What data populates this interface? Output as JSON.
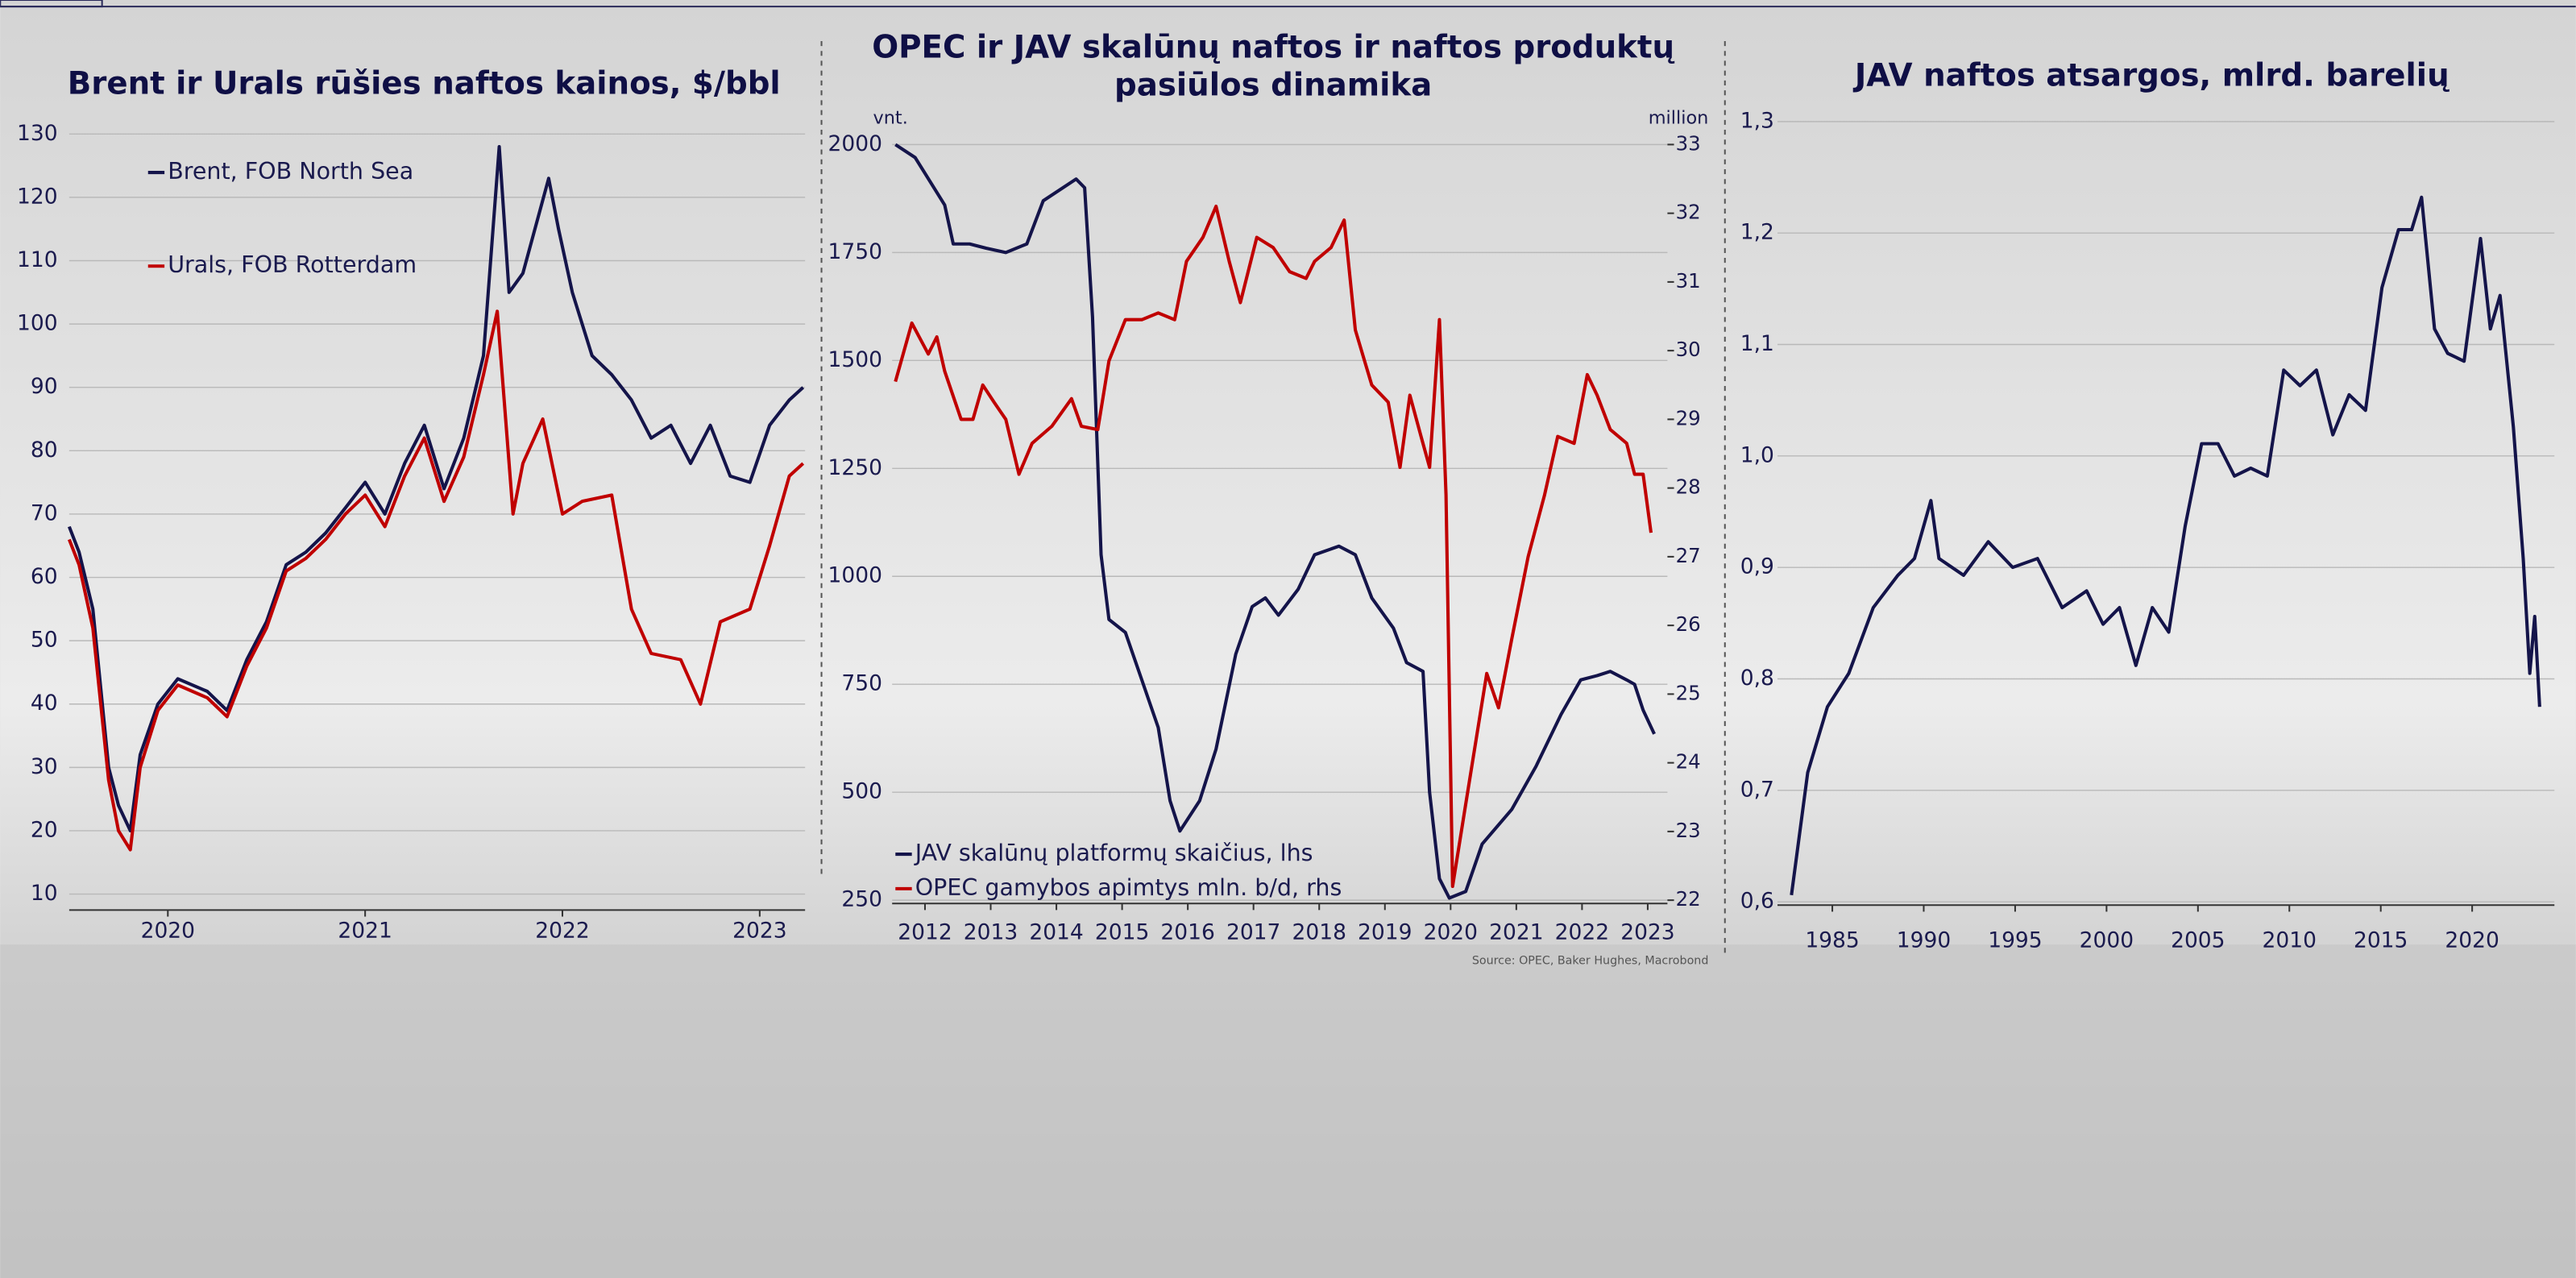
{
  "chart_data": [
    {
      "type": "line",
      "title": "Brent ir Urals rūšies naftos kainos, $/bbl",
      "xlim": [
        2020,
        2023.73
      ],
      "xticks": [
        {
          "value": 2020.5,
          "label": "2020"
        },
        {
          "value": 2021.5,
          "label": "2021"
        },
        {
          "value": 2022.5,
          "label": "2022"
        },
        {
          "value": 2023.5,
          "label": "2023"
        }
      ],
      "ylim": [
        8,
        133
      ],
      "yticks": [
        10,
        20,
        30,
        40,
        50,
        60,
        70,
        80,
        90,
        100,
        110,
        120,
        130
      ],
      "grid": true,
      "series": [
        {
          "name": "Brent, FOB North Sea",
          "color": "#14144a",
          "x": [
            2020.0,
            2020.05,
            2020.12,
            2020.2,
            2020.25,
            2020.31,
            2020.36,
            2020.45,
            2020.55,
            2020.7,
            2020.8,
            2020.9,
            2021.0,
            2021.1,
            2021.2,
            2021.3,
            2021.4,
            2021.5,
            2021.6,
            2021.7,
            2021.8,
            2021.9,
            2022.0,
            2022.1,
            2022.18,
            2022.23,
            2022.3,
            2022.43,
            2022.48,
            2022.55,
            2022.65,
            2022.75,
            2022.85,
            2022.95,
            2023.05,
            2023.15,
            2023.25,
            2023.35,
            2023.45,
            2023.55,
            2023.65,
            2023.72
          ],
          "values": [
            68,
            64,
            55,
            30,
            24,
            20,
            32,
            40,
            44,
            42,
            39,
            47,
            53,
            62,
            64,
            67,
            71,
            75,
            70,
            78,
            84,
            74,
            82,
            95,
            128,
            105,
            108,
            123,
            115,
            105,
            95,
            92,
            88,
            82,
            84,
            78,
            84,
            76,
            75,
            84,
            88,
            90
          ]
        },
        {
          "name": "Urals, FOB Rotterdam",
          "color": "#c00000",
          "x": [
            2020.0,
            2020.05,
            2020.12,
            2020.2,
            2020.25,
            2020.31,
            2020.36,
            2020.45,
            2020.55,
            2020.7,
            2020.8,
            2020.9,
            2021.0,
            2021.1,
            2021.2,
            2021.3,
            2021.4,
            2021.5,
            2021.6,
            2021.7,
            2021.8,
            2021.9,
            2022.0,
            2022.1,
            2022.17,
            2022.25,
            2022.3,
            2022.4,
            2022.5,
            2022.6,
            2022.75,
            2022.85,
            2022.95,
            2023.1,
            2023.2,
            2023.3,
            2023.45,
            2023.55,
            2023.65,
            2023.72
          ],
          "values": [
            66,
            62,
            52,
            28,
            20,
            17,
            30,
            39,
            43,
            41,
            38,
            46,
            52,
            61,
            63,
            66,
            70,
            73,
            68,
            76,
            82,
            72,
            79,
            92,
            102,
            70,
            78,
            85,
            70,
            72,
            73,
            55,
            48,
            47,
            40,
            53,
            55,
            65,
            76,
            78
          ]
        }
      ]
    },
    {
      "type": "line",
      "title": [
        "OPEC ir JAV skalūnų naftos ir naftos produktų",
        "pasiūlos dinamika"
      ],
      "y_label": "vnt.",
      "y2_label": "million",
      "source": "Source: OPEC, Baker Hughes, Macrobond",
      "xlim": [
        2012,
        2023.8
      ],
      "xticks": [
        {
          "value": 2012.5,
          "label": "2012"
        },
        {
          "value": 2013.5,
          "label": "2013"
        },
        {
          "value": 2014.5,
          "label": "2014"
        },
        {
          "value": 2015.5,
          "label": "2015"
        },
        {
          "value": 2016.5,
          "label": "2016"
        },
        {
          "value": 2017.5,
          "label": "2017"
        },
        {
          "value": 2018.5,
          "label": "2018"
        },
        {
          "value": 2019.5,
          "label": "2019"
        },
        {
          "value": 2020.5,
          "label": "2020"
        },
        {
          "value": 2021.5,
          "label": "2021"
        },
        {
          "value": 2022.5,
          "label": "2022"
        },
        {
          "value": 2023.5,
          "label": "2023"
        }
      ],
      "ylim": [
        250,
        2000
      ],
      "yticks": [
        250,
        500,
        750,
        1000,
        1250,
        1500,
        1750,
        2000
      ],
      "y2lim": [
        22,
        33
      ],
      "y2ticks": [
        22,
        23,
        24,
        25,
        26,
        27,
        28,
        29,
        30,
        31,
        32,
        33
      ],
      "grid": true,
      "series": [
        {
          "name": "JAV skalūnų platformų skaičius, lhs",
          "color": "#14144a",
          "x": [
            2012.05,
            2012.35,
            2012.8,
            2012.93,
            2013.18,
            2013.43,
            2013.73,
            2014.05,
            2014.3,
            2014.8,
            2014.93,
            2015.05,
            2015.18,
            2015.3,
            2015.55,
            2015.8,
            2016.05,
            2016.23,
            2016.38,
            2016.68,
            2016.93,
            2017.23,
            2017.48,
            2017.68,
            2017.88,
            2018.18,
            2018.43,
            2018.8,
            2019.05,
            2019.3,
            2019.63,
            2019.83,
            2020.08,
            2020.18,
            2020.33,
            2020.48,
            2020.73,
            2020.98,
            2021.43,
            2021.8,
            2022.18,
            2022.48,
            2022.73,
            2022.93,
            2023.18,
            2023.3,
            2023.43,
            2023.6
          ],
          "values": [
            2000,
            1970,
            1860,
            1770,
            1770,
            1760,
            1750,
            1770,
            1870,
            1920,
            1900,
            1600,
            1050,
            900,
            870,
            760,
            650,
            480,
            410,
            480,
            600,
            820,
            930,
            950,
            910,
            970,
            1050,
            1070,
            1050,
            950,
            880,
            800,
            780,
            500,
            300,
            255,
            270,
            380,
            460,
            560,
            680,
            760,
            770,
            780,
            760,
            750,
            690,
            635
          ]
        },
        {
          "name": "OPEC gamybos apimtys mln. b/d, rhs",
          "color": "#c00000",
          "axis": "y2",
          "x": [
            2012.05,
            2012.3,
            2012.55,
            2012.68,
            2012.8,
            2013.05,
            2013.23,
            2013.38,
            2013.55,
            2013.73,
            2013.93,
            2014.13,
            2014.43,
            2014.73,
            2014.88,
            2015.13,
            2015.3,
            2015.55,
            2015.8,
            2016.05,
            2016.3,
            2016.48,
            2016.73,
            2016.93,
            2017.13,
            2017.3,
            2017.55,
            2017.8,
            2018.05,
            2018.3,
            2018.43,
            2018.68,
            2018.88,
            2019.05,
            2019.3,
            2019.55,
            2019.73,
            2019.88,
            2020.05,
            2020.18,
            2020.33,
            2020.43,
            2020.53,
            2020.73,
            2021.05,
            2021.23,
            2021.43,
            2021.68,
            2021.93,
            2022.13,
            2022.38,
            2022.58,
            2022.73,
            2022.93,
            2023.18,
            2023.3,
            2023.43,
            2023.55
          ],
          "values": [
            29.55,
            30.4,
            29.95,
            30.2,
            29.7,
            29.0,
            29.0,
            29.5,
            29.25,
            29.0,
            28.2,
            28.65,
            28.9,
            29.3,
            28.9,
            28.85,
            29.85,
            30.45,
            30.45,
            30.55,
            30.45,
            31.3,
            31.65,
            32.1,
            31.3,
            30.7,
            31.65,
            31.5,
            31.15,
            31.05,
            31.3,
            31.5,
            31.9,
            30.3,
            29.5,
            29.25,
            28.3,
            29.35,
            28.75,
            28.3,
            30.45,
            27.9,
            22.2,
            23.4,
            25.3,
            24.8,
            25.8,
            27.0,
            27.9,
            28.75,
            28.65,
            29.65,
            29.35,
            28.85,
            28.65,
            28.2,
            28.2,
            27.35
          ]
        }
      ]
    },
    {
      "type": "line",
      "title": "JAV naftos atsargos, mlrd. barelių",
      "xlim": [
        1982,
        2024.5
      ],
      "xticks": [
        1985,
        1990,
        1995,
        2000,
        2005,
        2010,
        2015,
        2020
      ],
      "ylim": [
        0.6,
        1.3
      ],
      "yticks": [
        {
          "value": 0.6,
          "label": "0,6"
        },
        {
          "value": 0.7,
          "label": "0,7"
        },
        {
          "value": 0.8,
          "label": "0,8"
        },
        {
          "value": 0.9,
          "label": "0,9"
        },
        {
          "value": 1.0,
          "label": "1,0"
        },
        {
          "value": 1.1,
          "label": "1,1"
        },
        {
          "value": 1.2,
          "label": "1,2"
        },
        {
          "value": 1.3,
          "label": "1,3"
        }
      ],
      "grid": true,
      "series": [
        {
          "name": null,
          "color": "#14144a",
          "x": [
            1982.76,
            1983.65,
            1984.73,
            1985.9,
            1987.24,
            1988.59,
            1989.49,
            1990.39,
            1990.83,
            1992.18,
            1993.53,
            1994.87,
            1996.22,
            1997.57,
            1998.91,
            1999.81,
            2000.71,
            2001.61,
            2002.5,
            2003.4,
            2004.3,
            2005.2,
            2006.1,
            2007.0,
            2007.89,
            2008.79,
            2009.69,
            2010.58,
            2011.48,
            2012.38,
            2013.27,
            2014.17,
            2015.07,
            2015.97,
            2016.69,
            2017.23,
            2017.94,
            2018.66,
            2019.56,
            2020.46,
            2021.0,
            2021.53,
            2022.25,
            2022.79,
            2023.15,
            2023.42,
            2023.69
          ],
          "values": [
            0.606,
            0.716,
            0.775,
            0.805,
            0.864,
            0.893,
            0.908,
            0.96,
            0.908,
            0.893,
            0.923,
            0.9,
            0.908,
            0.864,
            0.879,
            0.849,
            0.864,
            0.812,
            0.864,
            0.842,
            0.937,
            1.011,
            1.011,
            0.982,
            0.989,
            0.982,
            1.077,
            1.063,
            1.077,
            1.019,
            1.055,
            1.041,
            1.151,
            1.203,
            1.203,
            1.232,
            1.114,
            1.092,
            1.085,
            1.195,
            1.114,
            1.144,
            1.026,
            0.908,
            0.805,
            0.856,
            0.775
          ]
        }
      ]
    }
  ]
}
